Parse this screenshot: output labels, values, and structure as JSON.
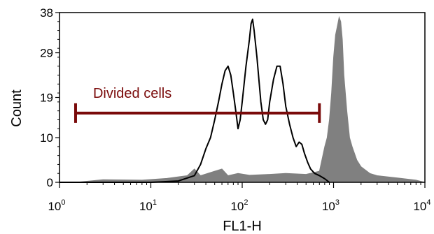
{
  "chart_data": {
    "type": "area",
    "title": "",
    "xlabel": "FL1-H",
    "ylabel": "Count",
    "x_scale": "log",
    "xlim": [
      1,
      10000
    ],
    "ylim": [
      0,
      38
    ],
    "grid": false,
    "x_ticks": [
      {
        "value": 1,
        "base": "10",
        "exp": "0"
      },
      {
        "value": 10,
        "base": "10",
        "exp": "1"
      },
      {
        "value": 100,
        "base": "10",
        "exp": "2"
      },
      {
        "value": 1000,
        "base": "10",
        "exp": "3"
      },
      {
        "value": 10000,
        "base": "10",
        "exp": "4"
      }
    ],
    "y_ticks": [
      0,
      10,
      19,
      29,
      38
    ],
    "series": [
      {
        "style": "filled",
        "color": "#808080",
        "points": [
          [
            1.5,
            0
          ],
          [
            3,
            0.6
          ],
          [
            8,
            0.5
          ],
          [
            15,
            0.9
          ],
          [
            25,
            1.5
          ],
          [
            30,
            3
          ],
          [
            35,
            1.5
          ],
          [
            50,
            2.5
          ],
          [
            60,
            3
          ],
          [
            70,
            1.5
          ],
          [
            90,
            2
          ],
          [
            120,
            1.6
          ],
          [
            200,
            1.8
          ],
          [
            300,
            2
          ],
          [
            500,
            1.8
          ],
          [
            700,
            2.5
          ],
          [
            800,
            8
          ],
          [
            850,
            10
          ],
          [
            900,
            14
          ],
          [
            950,
            20
          ],
          [
            1000,
            28
          ],
          [
            1050,
            33
          ],
          [
            1100,
            35
          ],
          [
            1150,
            37
          ],
          [
            1200,
            36
          ],
          [
            1250,
            32
          ],
          [
            1300,
            24
          ],
          [
            1400,
            16
          ],
          [
            1500,
            10
          ],
          [
            1600,
            8
          ],
          [
            1800,
            5
          ],
          [
            2000,
            3.5
          ],
          [
            2500,
            2
          ],
          [
            3000,
            1.5
          ],
          [
            5000,
            1
          ],
          [
            8000,
            0.5
          ],
          [
            10000,
            0
          ]
        ]
      },
      {
        "style": "line",
        "color": "#000000",
        "points": [
          [
            1,
            0
          ],
          [
            10,
            0
          ],
          [
            20,
            0.3
          ],
          [
            30,
            1.5
          ],
          [
            35,
            4
          ],
          [
            40,
            7.5
          ],
          [
            45,
            10
          ],
          [
            50,
            14
          ],
          [
            55,
            18
          ],
          [
            60,
            22
          ],
          [
            65,
            25
          ],
          [
            70,
            26
          ],
          [
            75,
            24
          ],
          [
            80,
            20
          ],
          [
            85,
            16
          ],
          [
            90,
            12
          ],
          [
            95,
            14
          ],
          [
            100,
            18
          ],
          [
            110,
            26
          ],
          [
            120,
            32
          ],
          [
            125,
            35.5
          ],
          [
            130,
            36.5
          ],
          [
            135,
            34
          ],
          [
            145,
            28
          ],
          [
            160,
            18
          ],
          [
            170,
            14
          ],
          [
            180,
            13
          ],
          [
            190,
            14
          ],
          [
            200,
            18
          ],
          [
            220,
            23
          ],
          [
            240,
            26
          ],
          [
            260,
            26
          ],
          [
            280,
            22
          ],
          [
            300,
            17
          ],
          [
            330,
            13
          ],
          [
            360,
            10
          ],
          [
            390,
            8
          ],
          [
            420,
            9
          ],
          [
            450,
            8.5
          ],
          [
            480,
            6.5
          ],
          [
            520,
            4.5
          ],
          [
            560,
            3
          ],
          [
            620,
            2
          ],
          [
            700,
            1.5
          ],
          [
            800,
            0.8
          ],
          [
            900,
            0
          ]
        ]
      }
    ],
    "annotations": [
      {
        "type": "gate",
        "text": "Divided cells",
        "x_start": 1.5,
        "x_end": 700,
        "y": 15.5,
        "color": "#7a0a0a"
      }
    ]
  }
}
